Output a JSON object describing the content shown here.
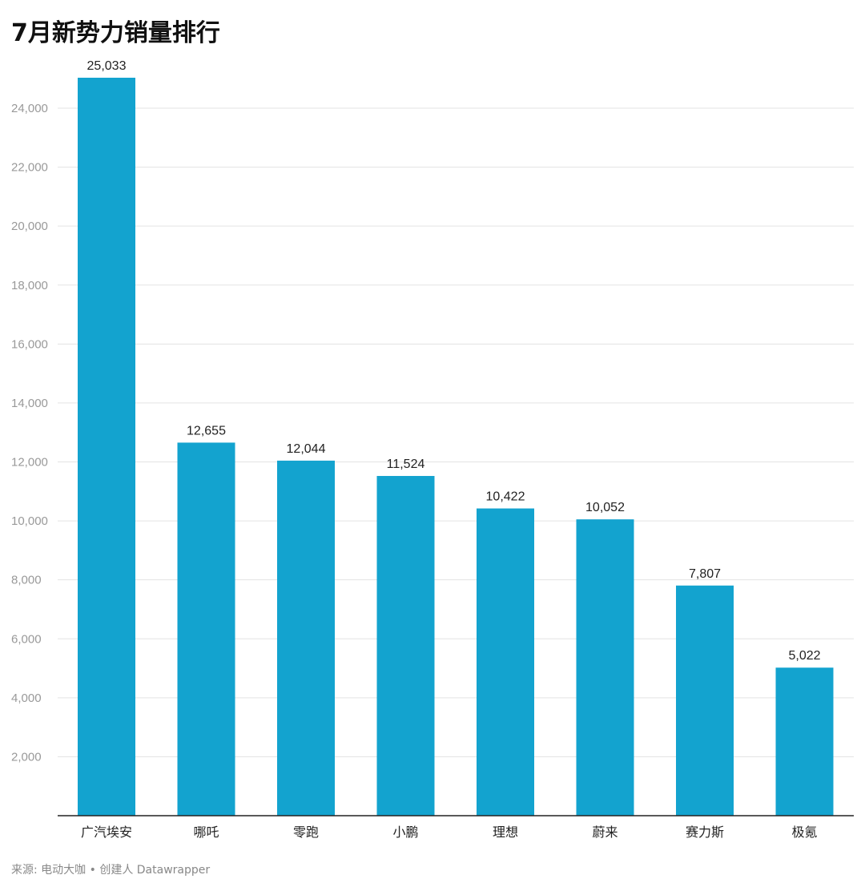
{
  "colors": {
    "bar": "#13a3cf",
    "grid": "#e3e3e3",
    "axis": "#222222",
    "tick_text": "#999999",
    "label_text": "#222222"
  },
  "chart_data": {
    "type": "bar",
    "title": "7月新势力销量排行",
    "categories": [
      "广汽埃安",
      "哪吒",
      "零跑",
      "小鹏",
      "理想",
      "蔚来",
      "赛力斯",
      "极氪"
    ],
    "values": [
      25033,
      12655,
      12044,
      11524,
      10422,
      10052,
      7807,
      5022
    ],
    "data_labels": [
      "25,033",
      "12,655",
      "12,044",
      "11,524",
      "10,422",
      "10,052",
      "7,807",
      "5,022"
    ],
    "y_ticks": [
      2000,
      4000,
      6000,
      8000,
      10000,
      12000,
      14000,
      16000,
      18000,
      20000,
      22000,
      24000
    ],
    "y_tick_labels": [
      "2,000",
      "4,000",
      "6,000",
      "8,000",
      "10,000",
      "12,000",
      "14,000",
      "16,000",
      "18,000",
      "20,000",
      "22,000",
      "24,000"
    ],
    "ylim": [
      0,
      25033
    ],
    "xlabel": "",
    "ylabel": "",
    "grid": true,
    "legend": "none"
  },
  "footer": {
    "text": "来源: 电动大咖 • 创建人 Datawrapper"
  }
}
